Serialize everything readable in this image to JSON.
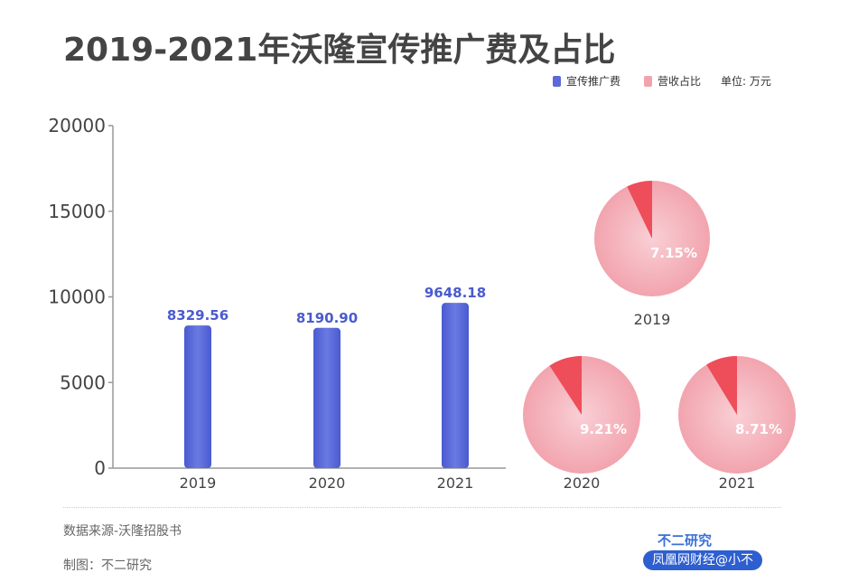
{
  "title": "2019-2021年沃隆宣传推广费及占比",
  "legend": {
    "series1": "宣传推广费",
    "series2": "营收占比",
    "unit": "单位: 万元"
  },
  "colors": {
    "bar": "#5b6bd8",
    "pie": "#f4b3bb",
    "slice": "#ee4d5a"
  },
  "chart_data": [
    {
      "type": "bar",
      "categories": [
        "2019",
        "2020",
        "2021"
      ],
      "series": [
        {
          "name": "宣传推广费",
          "values": [
            8329.56,
            8190.9,
            9648.18
          ]
        }
      ],
      "value_labels": [
        "8329.56",
        "8190.90",
        "9648.18"
      ],
      "ylim": [
        0,
        20000
      ],
      "yticks": [
        "0",
        "5000",
        "10000",
        "15000",
        "20000"
      ],
      "xlabel": "",
      "ylabel": ""
    },
    {
      "type": "pie",
      "name": "营收占比",
      "pies": [
        {
          "label": "2019",
          "value": 7.15,
          "value_label": "7.15%"
        },
        {
          "label": "2020",
          "value": 9.21,
          "value_label": "9.21%"
        },
        {
          "label": "2021",
          "value": 8.71,
          "value_label": "8.71%"
        }
      ]
    }
  ],
  "footer": {
    "source": "数据来源-沃隆招股书",
    "author": "制图：不二研究",
    "brand": "不二研究",
    "badge": "凤凰网财经@小不"
  }
}
